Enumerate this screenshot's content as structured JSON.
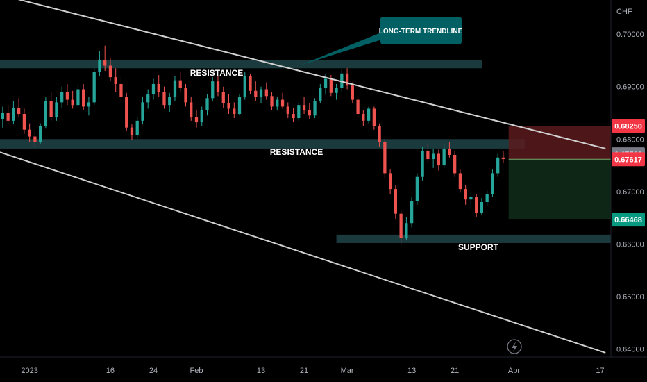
{
  "chart_data": {
    "type": "candlestick",
    "currency": "CHF",
    "y_ticks": [
      "0.70000",
      "0.69000",
      "0.68000",
      "0.67000",
      "0.66000",
      "0.65000",
      "0.64000"
    ],
    "y_tick_values": [
      0.7,
      0.69,
      0.68,
      0.67,
      0.66,
      0.65,
      0.64
    ],
    "ylim": [
      0.6385,
      0.7065
    ],
    "x_ticks": [
      "2023",
      "16",
      "24",
      "Feb",
      "13",
      "21",
      "Mar",
      "13",
      "21",
      "Apr",
      "17"
    ],
    "x_tick_days": [
      0,
      15,
      23,
      31,
      43,
      51,
      59,
      71,
      79,
      90,
      106
    ],
    "xlim_days": [
      -5.5,
      108
    ],
    "grid": false,
    "candles": [
      [
        -5,
        0.6838,
        0.6862,
        0.6822,
        0.685
      ],
      [
        -4,
        0.685,
        0.6865,
        0.683,
        0.6835
      ],
      [
        -3,
        0.6835,
        0.6872,
        0.6828,
        0.686
      ],
      [
        -2,
        0.686,
        0.6878,
        0.6842,
        0.6848
      ],
      [
        -1,
        0.6848,
        0.6858,
        0.681,
        0.6818
      ],
      [
        0,
        0.6818,
        0.683,
        0.6795,
        0.6805
      ],
      [
        1,
        0.6805,
        0.6815,
        0.6785,
        0.6795
      ],
      [
        2,
        0.6795,
        0.683,
        0.679,
        0.6825
      ],
      [
        3,
        0.6825,
        0.688,
        0.682,
        0.6872
      ],
      [
        4,
        0.6872,
        0.689,
        0.6835,
        0.6842
      ],
      [
        5,
        0.6842,
        0.688,
        0.6835,
        0.687
      ],
      [
        6,
        0.687,
        0.69,
        0.686,
        0.689
      ],
      [
        7,
        0.689,
        0.6905,
        0.6865,
        0.6875
      ],
      [
        8,
        0.6875,
        0.6892,
        0.6858,
        0.6865
      ],
      [
        9,
        0.6865,
        0.6905,
        0.686,
        0.6895
      ],
      [
        10,
        0.6895,
        0.6905,
        0.6855,
        0.6862
      ],
      [
        11,
        0.6862,
        0.688,
        0.6845,
        0.687
      ],
      [
        12,
        0.687,
        0.6935,
        0.6865,
        0.6928
      ],
      [
        13,
        0.6928,
        0.6968,
        0.692,
        0.695
      ],
      [
        14,
        0.695,
        0.6978,
        0.693,
        0.694
      ],
      [
        15,
        0.694,
        0.6955,
        0.691,
        0.6918
      ],
      [
        16,
        0.6918,
        0.6935,
        0.689,
        0.6905
      ],
      [
        17,
        0.6905,
        0.692,
        0.687,
        0.688
      ],
      [
        18,
        0.688,
        0.6888,
        0.6815,
        0.6822
      ],
      [
        19,
        0.6822,
        0.6828,
        0.6798,
        0.6808
      ],
      [
        20,
        0.6808,
        0.6842,
        0.6802,
        0.6835
      ],
      [
        21,
        0.6835,
        0.688,
        0.6828,
        0.687
      ],
      [
        22,
        0.687,
        0.6895,
        0.6858,
        0.6885
      ],
      [
        23,
        0.6885,
        0.6915,
        0.6875,
        0.6905
      ],
      [
        24,
        0.6905,
        0.6922,
        0.688,
        0.689
      ],
      [
        25,
        0.689,
        0.69,
        0.6858,
        0.6865
      ],
      [
        26,
        0.6865,
        0.6888,
        0.6852,
        0.688
      ],
      [
        27,
        0.688,
        0.692,
        0.6872,
        0.6912
      ],
      [
        28,
        0.6912,
        0.6928,
        0.689,
        0.6898
      ],
      [
        29,
        0.6898,
        0.6905,
        0.6862,
        0.687
      ],
      [
        30,
        0.687,
        0.688,
        0.6835,
        0.6842
      ],
      [
        31,
        0.6842,
        0.6855,
        0.6822,
        0.6832
      ],
      [
        32,
        0.6832,
        0.6862,
        0.6825,
        0.6855
      ],
      [
        33,
        0.6855,
        0.6885,
        0.6845,
        0.6878
      ],
      [
        34,
        0.6878,
        0.6918,
        0.6872,
        0.691
      ],
      [
        35,
        0.691,
        0.692,
        0.6882,
        0.689
      ],
      [
        36,
        0.689,
        0.69,
        0.686,
        0.6868
      ],
      [
        37,
        0.6868,
        0.6885,
        0.6848,
        0.6858
      ],
      [
        38,
        0.6858,
        0.687,
        0.684,
        0.6848
      ],
      [
        39,
        0.6848,
        0.6885,
        0.6845,
        0.688
      ],
      [
        40,
        0.688,
        0.6928,
        0.6875,
        0.692
      ],
      [
        41,
        0.692,
        0.6925,
        0.6885,
        0.6892
      ],
      [
        42,
        0.6892,
        0.691,
        0.6872,
        0.688
      ],
      [
        43,
        0.688,
        0.69,
        0.6868,
        0.6895
      ],
      [
        44,
        0.6895,
        0.6908,
        0.6875,
        0.6882
      ],
      [
        45,
        0.6882,
        0.689,
        0.6855,
        0.6862
      ],
      [
        46,
        0.6862,
        0.688,
        0.6855,
        0.6875
      ],
      [
        47,
        0.6875,
        0.6888,
        0.6858,
        0.6862
      ],
      [
        48,
        0.6862,
        0.687,
        0.684,
        0.6848
      ],
      [
        49,
        0.6848,
        0.686,
        0.6832,
        0.684
      ],
      [
        50,
        0.684,
        0.687,
        0.6835,
        0.6865
      ],
      [
        51,
        0.6865,
        0.688,
        0.6848,
        0.6855
      ],
      [
        52,
        0.6855,
        0.6868,
        0.6838,
        0.6845
      ],
      [
        53,
        0.6845,
        0.6878,
        0.684,
        0.6872
      ],
      [
        54,
        0.6872,
        0.6905,
        0.6868,
        0.6898
      ],
      [
        55,
        0.6898,
        0.6925,
        0.6885,
        0.6915
      ],
      [
        56,
        0.6915,
        0.6922,
        0.6882,
        0.6888
      ],
      [
        57,
        0.6888,
        0.6905,
        0.6875,
        0.6898
      ],
      [
        58,
        0.6898,
        0.6932,
        0.689,
        0.6925
      ],
      [
        59,
        0.6925,
        0.6935,
        0.6895,
        0.6902
      ],
      [
        60,
        0.6902,
        0.6908,
        0.6868,
        0.6875
      ],
      [
        61,
        0.6875,
        0.688,
        0.684,
        0.6848
      ],
      [
        62,
        0.6848,
        0.6855,
        0.6825,
        0.6835
      ],
      [
        63,
        0.6835,
        0.6862,
        0.683,
        0.6858
      ],
      [
        64,
        0.6858,
        0.6862,
        0.6818,
        0.6825
      ],
      [
        65,
        0.6825,
        0.683,
        0.6785,
        0.6795
      ],
      [
        66,
        0.6795,
        0.68,
        0.6725,
        0.6735
      ],
      [
        67,
        0.6735,
        0.6742,
        0.6695,
        0.6705
      ],
      [
        68,
        0.6705,
        0.6712,
        0.6648,
        0.6658
      ],
      [
        69,
        0.6658,
        0.6665,
        0.6598,
        0.6612
      ],
      [
        70,
        0.6612,
        0.6652,
        0.6608,
        0.664
      ],
      [
        71,
        0.664,
        0.669,
        0.6632,
        0.6682
      ],
      [
        72,
        0.6682,
        0.6735,
        0.6675,
        0.6728
      ],
      [
        73,
        0.6728,
        0.6785,
        0.672,
        0.6778
      ],
      [
        74,
        0.6778,
        0.679,
        0.6755,
        0.6762
      ],
      [
        75,
        0.6762,
        0.6782,
        0.6745,
        0.6772
      ],
      [
        76,
        0.6772,
        0.678,
        0.674,
        0.675
      ],
      [
        77,
        0.675,
        0.679,
        0.6745,
        0.6782
      ],
      [
        78,
        0.6782,
        0.6795,
        0.6765,
        0.677
      ],
      [
        79,
        0.677,
        0.6778,
        0.6728,
        0.6735
      ],
      [
        80,
        0.6735,
        0.6742,
        0.6698,
        0.6705
      ],
      [
        81,
        0.6705,
        0.6712,
        0.6675,
        0.6685
      ],
      [
        82,
        0.6685,
        0.67,
        0.6665,
        0.669
      ],
      [
        83,
        0.669,
        0.6695,
        0.6652,
        0.666
      ],
      [
        84,
        0.666,
        0.6688,
        0.6655,
        0.668
      ],
      [
        85,
        0.668,
        0.6702,
        0.6672,
        0.6695
      ],
      [
        86,
        0.6695,
        0.6742,
        0.669,
        0.6735
      ],
      [
        87,
        0.6735,
        0.6772,
        0.6728,
        0.6765
      ],
      [
        88,
        0.6765,
        0.6778,
        0.6755,
        0.6762
      ]
    ],
    "annotations": {
      "long_term_trendline": "LONG-TERM TRENDLINE",
      "resistance_top": "RESISTANCE",
      "resistance_mid": "RESISTANCE",
      "support": "SUPPORT",
      "resistance_top_band": [
        0.6935,
        0.695
      ],
      "resistance_mid_band": [
        0.6782,
        0.68
      ],
      "support_band": [
        0.6602,
        0.6618
      ],
      "trendline_upper": [
        [
          -5.5,
          0.7075
        ],
        [
          107,
          0.6782
        ]
      ],
      "trendline_lower": [
        [
          -5.5,
          0.6775
        ],
        [
          107,
          0.6393
        ]
      ],
      "position_box": {
        "start_day": 89,
        "end_day": 108,
        "stop": 0.6825,
        "entry": 0.67617,
        "target": 0.66468
      }
    },
    "price_tags": [
      {
        "label": "0.68250",
        "value": 0.6825,
        "color": "#f23645"
      },
      {
        "label": "0.67712",
        "value": 0.67712,
        "color": "#787b86"
      },
      {
        "label": "0.67617",
        "value": 0.67617,
        "color": "#f23645"
      },
      {
        "label": "0.66468",
        "value": 0.66468,
        "color": "#089981"
      }
    ],
    "colors": {
      "up": "#26a69a",
      "down": "#ef5350",
      "zone": "#1b3a3d",
      "callout": "#006064",
      "trend": "#d0d0d0"
    }
  }
}
